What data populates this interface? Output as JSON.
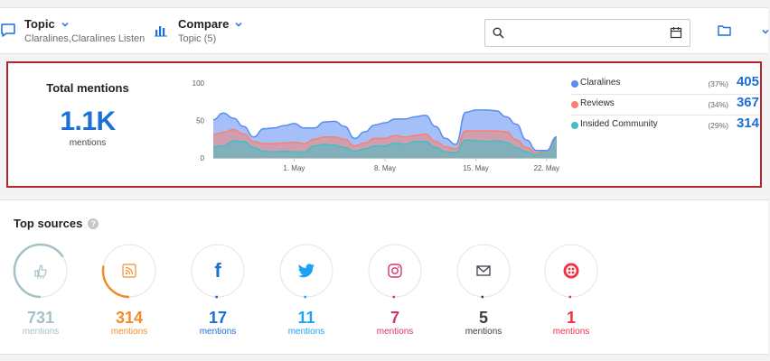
{
  "toolbar": {
    "topic_title": "Topic",
    "topic_sub": "Claralines,Claralines Listen",
    "compare_title": "Compare",
    "compare_sub": "Topic (5)",
    "search_value": "",
    "search_placeholder": ""
  },
  "summary": {
    "title": "Total mentions",
    "value": "1.1K",
    "unit": "mentions"
  },
  "chart_data": {
    "type": "area",
    "stacked": true,
    "x_tick_labels": [
      "1. May",
      "8. May",
      "15. May",
      "22. May"
    ],
    "y_tick_labels": [
      "100",
      "50",
      "0"
    ],
    "ylim": [
      0,
      100
    ],
    "grid": false,
    "series": [
      {
        "name": "Insided Community",
        "color": "#3fbfc6",
        "values": [
          15,
          16,
          23,
          22,
          14,
          9,
          8,
          9,
          8,
          8,
          16,
          18,
          17,
          14,
          9,
          12,
          16,
          16,
          20,
          18,
          22,
          22,
          14,
          8,
          7,
          24,
          23,
          22,
          23,
          21,
          14,
          8,
          4,
          10,
          28
        ]
      },
      {
        "name": "Reviews",
        "color": "#f8806e",
        "values": [
          16,
          18,
          15,
          10,
          8,
          10,
          11,
          11,
          13,
          11,
          9,
          10,
          11,
          11,
          7,
          8,
          10,
          10,
          10,
          10,
          8,
          10,
          8,
          7,
          5,
          12,
          13,
          14,
          13,
          14,
          10,
          6,
          3,
          0,
          0
        ]
      },
      {
        "name": "Claralines",
        "color": "#5b8cf2",
        "values": [
          20,
          26,
          15,
          10,
          6,
          20,
          21,
          23,
          25,
          21,
          15,
          20,
          21,
          17,
          10,
          15,
          18,
          21,
          22,
          24,
          25,
          25,
          20,
          11,
          6,
          25,
          28,
          28,
          27,
          20,
          21,
          10,
          3,
          0,
          0
        ]
      }
    ]
  },
  "legend": [
    {
      "name": "Claralines",
      "pct": "(37%)",
      "value": "405",
      "color": "#5b8cf2"
    },
    {
      "name": "Reviews",
      "pct": "(34%)",
      "value": "367",
      "color": "#f8806e"
    },
    {
      "name": "Insided Community",
      "pct": "(29%)",
      "value": "314",
      "color": "#3fbfc6"
    }
  ],
  "sources": {
    "title": "Top sources",
    "items": [
      {
        "icon": "forum-icon",
        "count": "731",
        "label": "mentions",
        "color": "#a3c2c6",
        "share": 0.66
      },
      {
        "icon": "rss-icon",
        "count": "314",
        "label": "mentions",
        "color": "#f28c28",
        "share": 0.28
      },
      {
        "icon": "facebook-icon",
        "count": "17",
        "label": "mentions",
        "color": "#1c6fd6",
        "share": 0.015
      },
      {
        "icon": "twitter-icon",
        "count": "11",
        "label": "mentions",
        "color": "#1da1f2",
        "share": 0.01
      },
      {
        "icon": "instagram-icon",
        "count": "7",
        "label": "mentions",
        "color": "#d6336c",
        "share": 0.006
      },
      {
        "icon": "email-icon",
        "count": "5",
        "label": "mentions",
        "color": "#3a3f47",
        "share": 0.004
      },
      {
        "icon": "twilio-icon",
        "count": "1",
        "label": "mentions",
        "color": "#f22f46",
        "share": 0.001
      }
    ]
  }
}
